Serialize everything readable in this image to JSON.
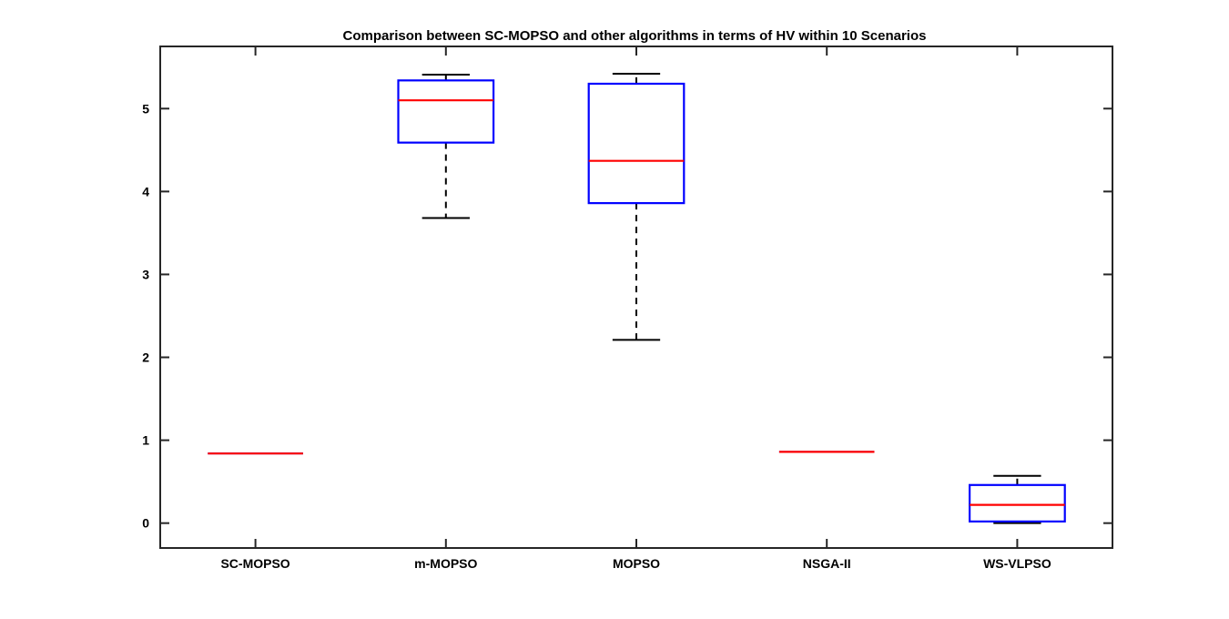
{
  "chart_data": {
    "type": "boxplot",
    "title": "Comparison between SC-MOPSO and other algorithms in terms of HV within 10 Scenarios",
    "xlabel": "",
    "ylabel": "",
    "categories": [
      "SC-MOPSO",
      "m-MOPSO",
      "MOPSO",
      "NSGA-II",
      "WS-VLPSO"
    ],
    "boxes": [
      {
        "name": "SC-MOPSO",
        "whisker_low": 0.84,
        "q1": 0.84,
        "median": 0.84,
        "q3": 0.84,
        "whisker_high": 0.84
      },
      {
        "name": "m-MOPSO",
        "whisker_low": 3.68,
        "q1": 4.59,
        "median": 5.1,
        "q3": 5.34,
        "whisker_high": 5.41
      },
      {
        "name": "MOPSO",
        "whisker_low": 2.21,
        "q1": 3.86,
        "median": 4.37,
        "q3": 5.3,
        "whisker_high": 5.42
      },
      {
        "name": "NSGA-II",
        "whisker_low": 0.86,
        "q1": 0.86,
        "median": 0.86,
        "q3": 0.86,
        "whisker_high": 0.86
      },
      {
        "name": "WS-VLPSO",
        "whisker_low": 0.0,
        "q1": 0.02,
        "median": 0.22,
        "q3": 0.46,
        "whisker_high": 0.57
      }
    ],
    "ylim": [
      -0.3,
      5.75
    ],
    "yticks": [
      0,
      1,
      2,
      3,
      4,
      5
    ],
    "ytick_labels": [
      "0",
      "1",
      "2",
      "3",
      "4",
      "5"
    ],
    "grid": false,
    "colors": {
      "box": "#0000ff",
      "median": "#ff0000",
      "whisker": "#000000",
      "axis": "#262626",
      "text": "#000000"
    }
  }
}
